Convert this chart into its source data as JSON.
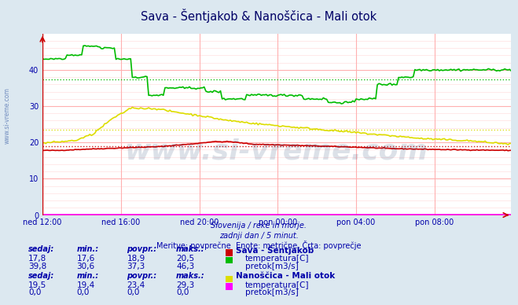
{
  "title": "Sava - Šentjakob & Nanoščica - Mali otok",
  "bg_color": "#dce8f0",
  "plot_bg_color": "#ffffff",
  "grid_major_color": "#ffb0b0",
  "grid_minor_color": "#ffe0e0",
  "text_color": "#0000aa",
  "subtitle_lines": [
    "Slovenija / reke in morje.",
    "zadnji dan / 5 minut.",
    "Meritve: povprečne  Enote: metrične  Črta: povprečje"
  ],
  "xticklabels": [
    "ned 12:00",
    "ned 16:00",
    "ned 20:00",
    "pon 00:00",
    "pon 04:00",
    "pon 08:00"
  ],
  "xtick_positions": [
    0,
    48,
    96,
    144,
    192,
    240
  ],
  "n_points": 288,
  "ylim": [
    0,
    50
  ],
  "yticks": [
    0,
    10,
    20,
    30,
    40
  ],
  "sava_temp_color": "#cc0000",
  "sava_flow_color": "#00bb00",
  "nano_temp_color": "#dddd00",
  "nano_flow_color": "#ff00ff",
  "sava_temp_avg": 18.9,
  "sava_flow_avg": 37.3,
  "nano_temp_avg": 23.4,
  "nano_flow_avg": 0.0,
  "axis_color": "#cc0000",
  "table_data": {
    "sava": {
      "label": "Sava - Šentjakob",
      "temp": {
        "sedaj": "17,8",
        "min": "17,6",
        "povpr": "18,9",
        "maks": "20,5",
        "color": "#cc0000",
        "unit": "temperatura[C]"
      },
      "flow": {
        "sedaj": "39,8",
        "min": "30,6",
        "povpr": "37,3",
        "maks": "46,3",
        "color": "#00bb00",
        "unit": "pretok[m3/s]"
      }
    },
    "nano": {
      "label": "Nanoščica - Mali otok",
      "temp": {
        "sedaj": "19,5",
        "min": "19,4",
        "povpr": "23,4",
        "maks": "29,3",
        "color": "#dddd00",
        "unit": "temperatura[C]"
      },
      "flow": {
        "sedaj": "0,0",
        "min": "0,0",
        "povpr": "0,0",
        "maks": "0,0",
        "color": "#ff00ff",
        "unit": "pretok[m3/s]"
      }
    }
  },
  "watermark": "www.si-vreme.com",
  "watermark_color": "#1a3a6a",
  "watermark_alpha": 0.15,
  "left_label": "www.si-vreme.com"
}
